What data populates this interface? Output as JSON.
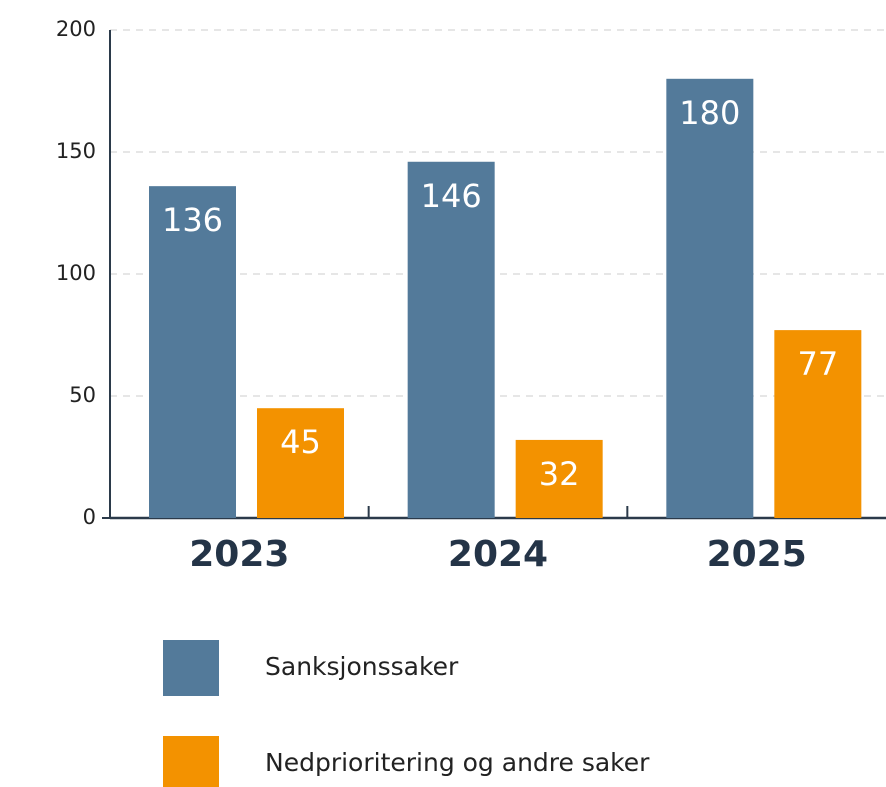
{
  "chart_data": {
    "type": "bar",
    "categories": [
      "2023",
      "2024",
      "2025"
    ],
    "series": [
      {
        "name": "Sanksjonssaker",
        "color": "#537a9a",
        "values": [
          136,
          146,
          180
        ]
      },
      {
        "name": "Nedprioritering og andre saker",
        "color": "#f39200",
        "values": [
          45,
          32,
          77
        ]
      }
    ],
    "ylim": [
      0,
      200
    ],
    "yticks": [
      0,
      50,
      100,
      150,
      200
    ],
    "grid": true
  }
}
